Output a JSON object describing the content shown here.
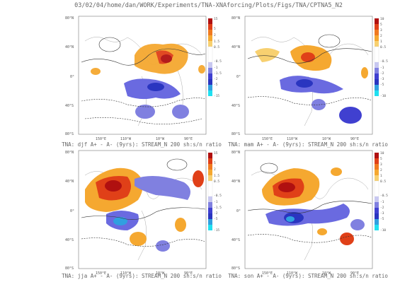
{
  "title": "03/02/04/home/dan/WORK/Experiments/TNA-XNAforcing/Plots/Figs/TNA/CPTNA5_N2",
  "panels": [
    {
      "id": "djf",
      "caption": "TNA: djf A+ - A- (9yrs): STREAM_N 200 sh:s/n ratio",
      "lat_labels": [
        "80°N",
        "40°N",
        "0°",
        "40°S",
        "80°S"
      ],
      "lon_labels": [
        "150°E",
        "110°W",
        "10°W",
        "90°E"
      ],
      "colorbar": [
        "15",
        "5",
        "2",
        "1.5",
        "0.5",
        "-0.5",
        "-1",
        "-1.5",
        "-2",
        "-5",
        "-15"
      ]
    },
    {
      "id": "mam",
      "caption": "TNA: mam A+ - A- (9yrs): STREAM_N 200 sh:s/n ratio",
      "lat_labels": [
        "80°N",
        "40°N",
        "0°",
        "40°S",
        "80°S"
      ],
      "lon_labels": [
        "150°E",
        "110°W",
        "10°W",
        "90°E"
      ],
      "colorbar": [
        "10",
        "5",
        "3",
        "2",
        "1",
        "0.5",
        "-0.5",
        "-1",
        "-2",
        "-3",
        "-5",
        "-10"
      ]
    },
    {
      "id": "jja",
      "caption": "TNA: jja A+ - A- (9yrs): STREAM_N 200 sh:s/n ratio",
      "lat_labels": [
        "80°N",
        "40°N",
        "0°",
        "40°S",
        "80°S"
      ],
      "lon_labels": [
        "150°E",
        "110°W",
        "10°W",
        "90°E"
      ],
      "colorbar": [
        "15",
        "5",
        "2",
        "1.5",
        "0.5",
        "-0.5",
        "-1",
        "-1.5",
        "-2",
        "-5",
        "-15"
      ]
    },
    {
      "id": "son",
      "caption": "TNA: son A+ - A- (9yrs): STREAM_N 200 sh:s/n ratio",
      "lat_labels": [
        "80°N",
        "40°N",
        "0°",
        "40°S",
        "80°S"
      ],
      "lon_labels": [
        "150°E",
        "110°W",
        "10°W",
        "90°E"
      ],
      "colorbar": [
        "10",
        "5",
        "3",
        "2",
        "1",
        "0.5",
        "-0.5",
        "-1",
        "-2",
        "-3",
        "-5",
        "-10"
      ]
    }
  ],
  "colors": {
    "warm": [
      "#b01010",
      "#e04018",
      "#f07a20",
      "#f5a830",
      "#f7d070"
    ],
    "cool": [
      "#c8c8f0",
      "#8080e0",
      "#4040d0",
      "#2a35c0",
      "#30a0e0",
      "#20e0f0"
    ]
  }
}
